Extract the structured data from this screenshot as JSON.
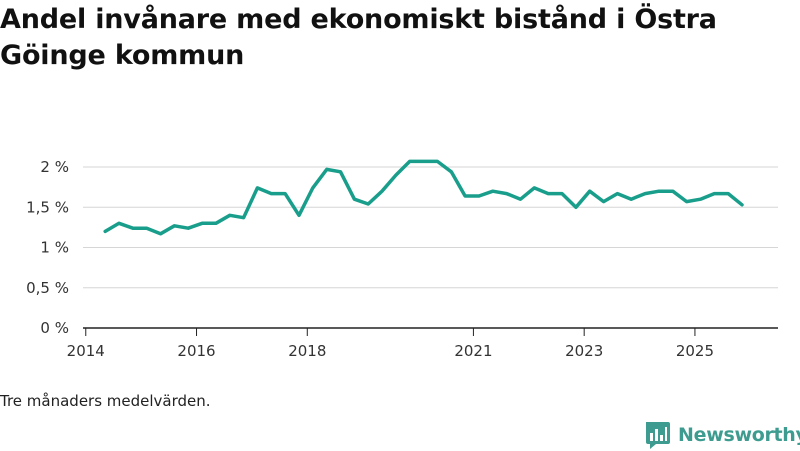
{
  "title": "Andel invånare med ekonomiskt bistånd i Östra Göinge kommun",
  "note": "Tre månaders medelvärden.",
  "brand": {
    "name": "Newsworthy",
    "icon": "newsworthy-logo-icon",
    "color": "#3d9c8f"
  },
  "chart_data": {
    "type": "line",
    "title": "Andel invånare med ekonomiskt bistånd i Östra Göinge kommun",
    "xlabel": "",
    "ylabel": "",
    "color": "#1a9e8c",
    "grid": true,
    "x_ticks": [
      {
        "x": 2014.0,
        "label": "2014"
      },
      {
        "x": 2016.0,
        "label": "2016"
      },
      {
        "x": 2018.0,
        "label": "2018"
      },
      {
        "x": 2021.0,
        "label": "2021"
      },
      {
        "x": 2023.0,
        "label": "2023"
      },
      {
        "x": 2025.0,
        "label": "2025"
      }
    ],
    "y_ticks": [
      {
        "y": 0,
        "label": "0 %"
      },
      {
        "y": 0.5,
        "label": "0,5 %"
      },
      {
        "y": 1,
        "label": "1 %"
      },
      {
        "y": 1.5,
        "label": "1,5 %"
      },
      {
        "y": 2,
        "label": "2 %"
      }
    ],
    "xlim": [
      2013.95,
      2026.5
    ],
    "ylim": [
      0,
      2
    ],
    "series": [
      {
        "x": [
          2014.35,
          2014.6,
          2014.85,
          2015.1,
          2015.35,
          2015.6,
          2015.85,
          2016.1,
          2016.35,
          2016.6,
          2016.85,
          2017.1,
          2017.35,
          2017.6,
          2017.85,
          2018.1,
          2018.35,
          2018.6,
          2018.85,
          2019.1,
          2019.35,
          2019.6,
          2019.85,
          2020.1,
          2020.35,
          2020.6,
          2020.85,
          2021.1,
          2021.35,
          2021.6,
          2021.85,
          2022.1,
          2022.35,
          2022.6,
          2022.85,
          2023.1,
          2023.35,
          2023.6,
          2023.85,
          2024.1,
          2024.35,
          2024.6,
          2024.85,
          2025.1,
          2025.35,
          2025.6,
          2025.85
        ],
        "y": [
          1.2,
          1.3,
          1.24,
          1.24,
          1.17,
          1.27,
          1.24,
          1.3,
          1.3,
          1.4,
          1.37,
          1.74,
          1.67,
          1.67,
          1.4,
          1.74,
          1.97,
          1.94,
          1.6,
          1.54,
          1.7,
          1.9,
          2.07,
          2.07,
          2.07,
          1.94,
          1.64,
          1.64,
          1.7,
          1.67,
          1.6,
          1.74,
          1.67,
          1.67,
          1.5,
          1.7,
          1.57,
          1.67,
          1.6,
          1.67,
          1.7,
          1.7,
          1.57,
          1.6,
          1.67,
          1.67,
          1.53
        ]
      }
    ]
  }
}
